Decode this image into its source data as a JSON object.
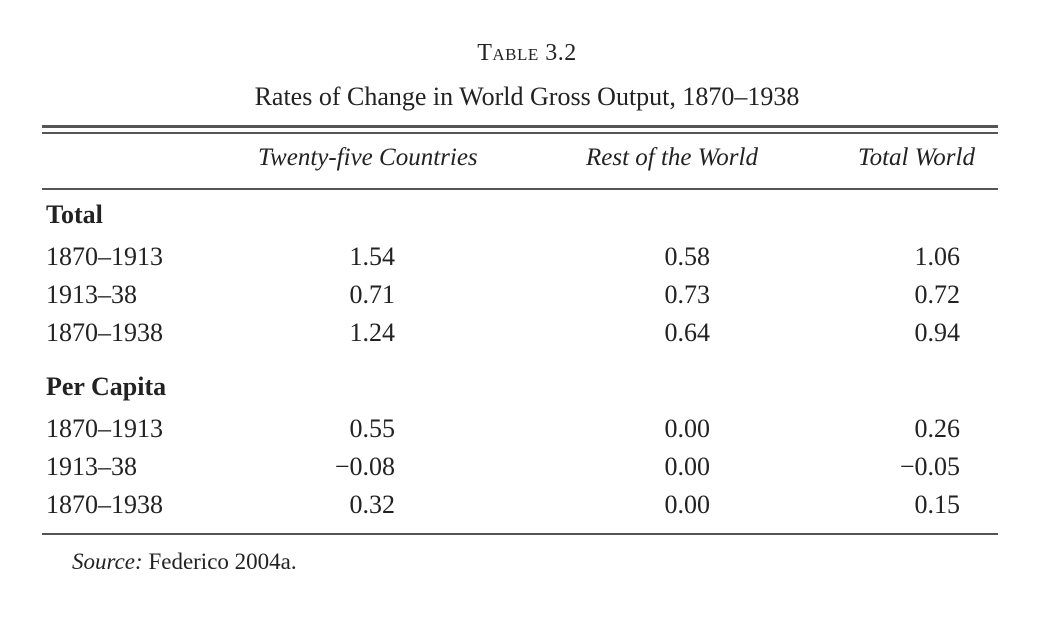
{
  "table": {
    "label": "Table 3.2",
    "caption": "Rates of Change in World Gross Output, 1870–1938",
    "columns": [
      "Twenty-five Countries",
      "Rest of the World",
      "Total World"
    ],
    "sections": [
      {
        "title": "Total",
        "rows": [
          {
            "period": "1870–1913",
            "values": [
              "1.54",
              "0.58",
              "1.06"
            ]
          },
          {
            "period": "1913–38",
            "values": [
              "0.71",
              "0.73",
              "0.72"
            ]
          },
          {
            "period": "1870–1938",
            "values": [
              "1.24",
              "0.64",
              "0.94"
            ]
          }
        ]
      },
      {
        "title": "Per Capita",
        "rows": [
          {
            "period": "1870–1913",
            "values": [
              "0.55",
              "0.00",
              "0.26"
            ]
          },
          {
            "period": "1913–38",
            "values": [
              "−0.08",
              "0.00",
              "−0.05"
            ]
          },
          {
            "period": "1870–1938",
            "values": [
              "0.32",
              "0.00",
              "0.15"
            ]
          }
        ]
      }
    ],
    "source_label": "Source:",
    "source_text": "Federico 2004a."
  }
}
